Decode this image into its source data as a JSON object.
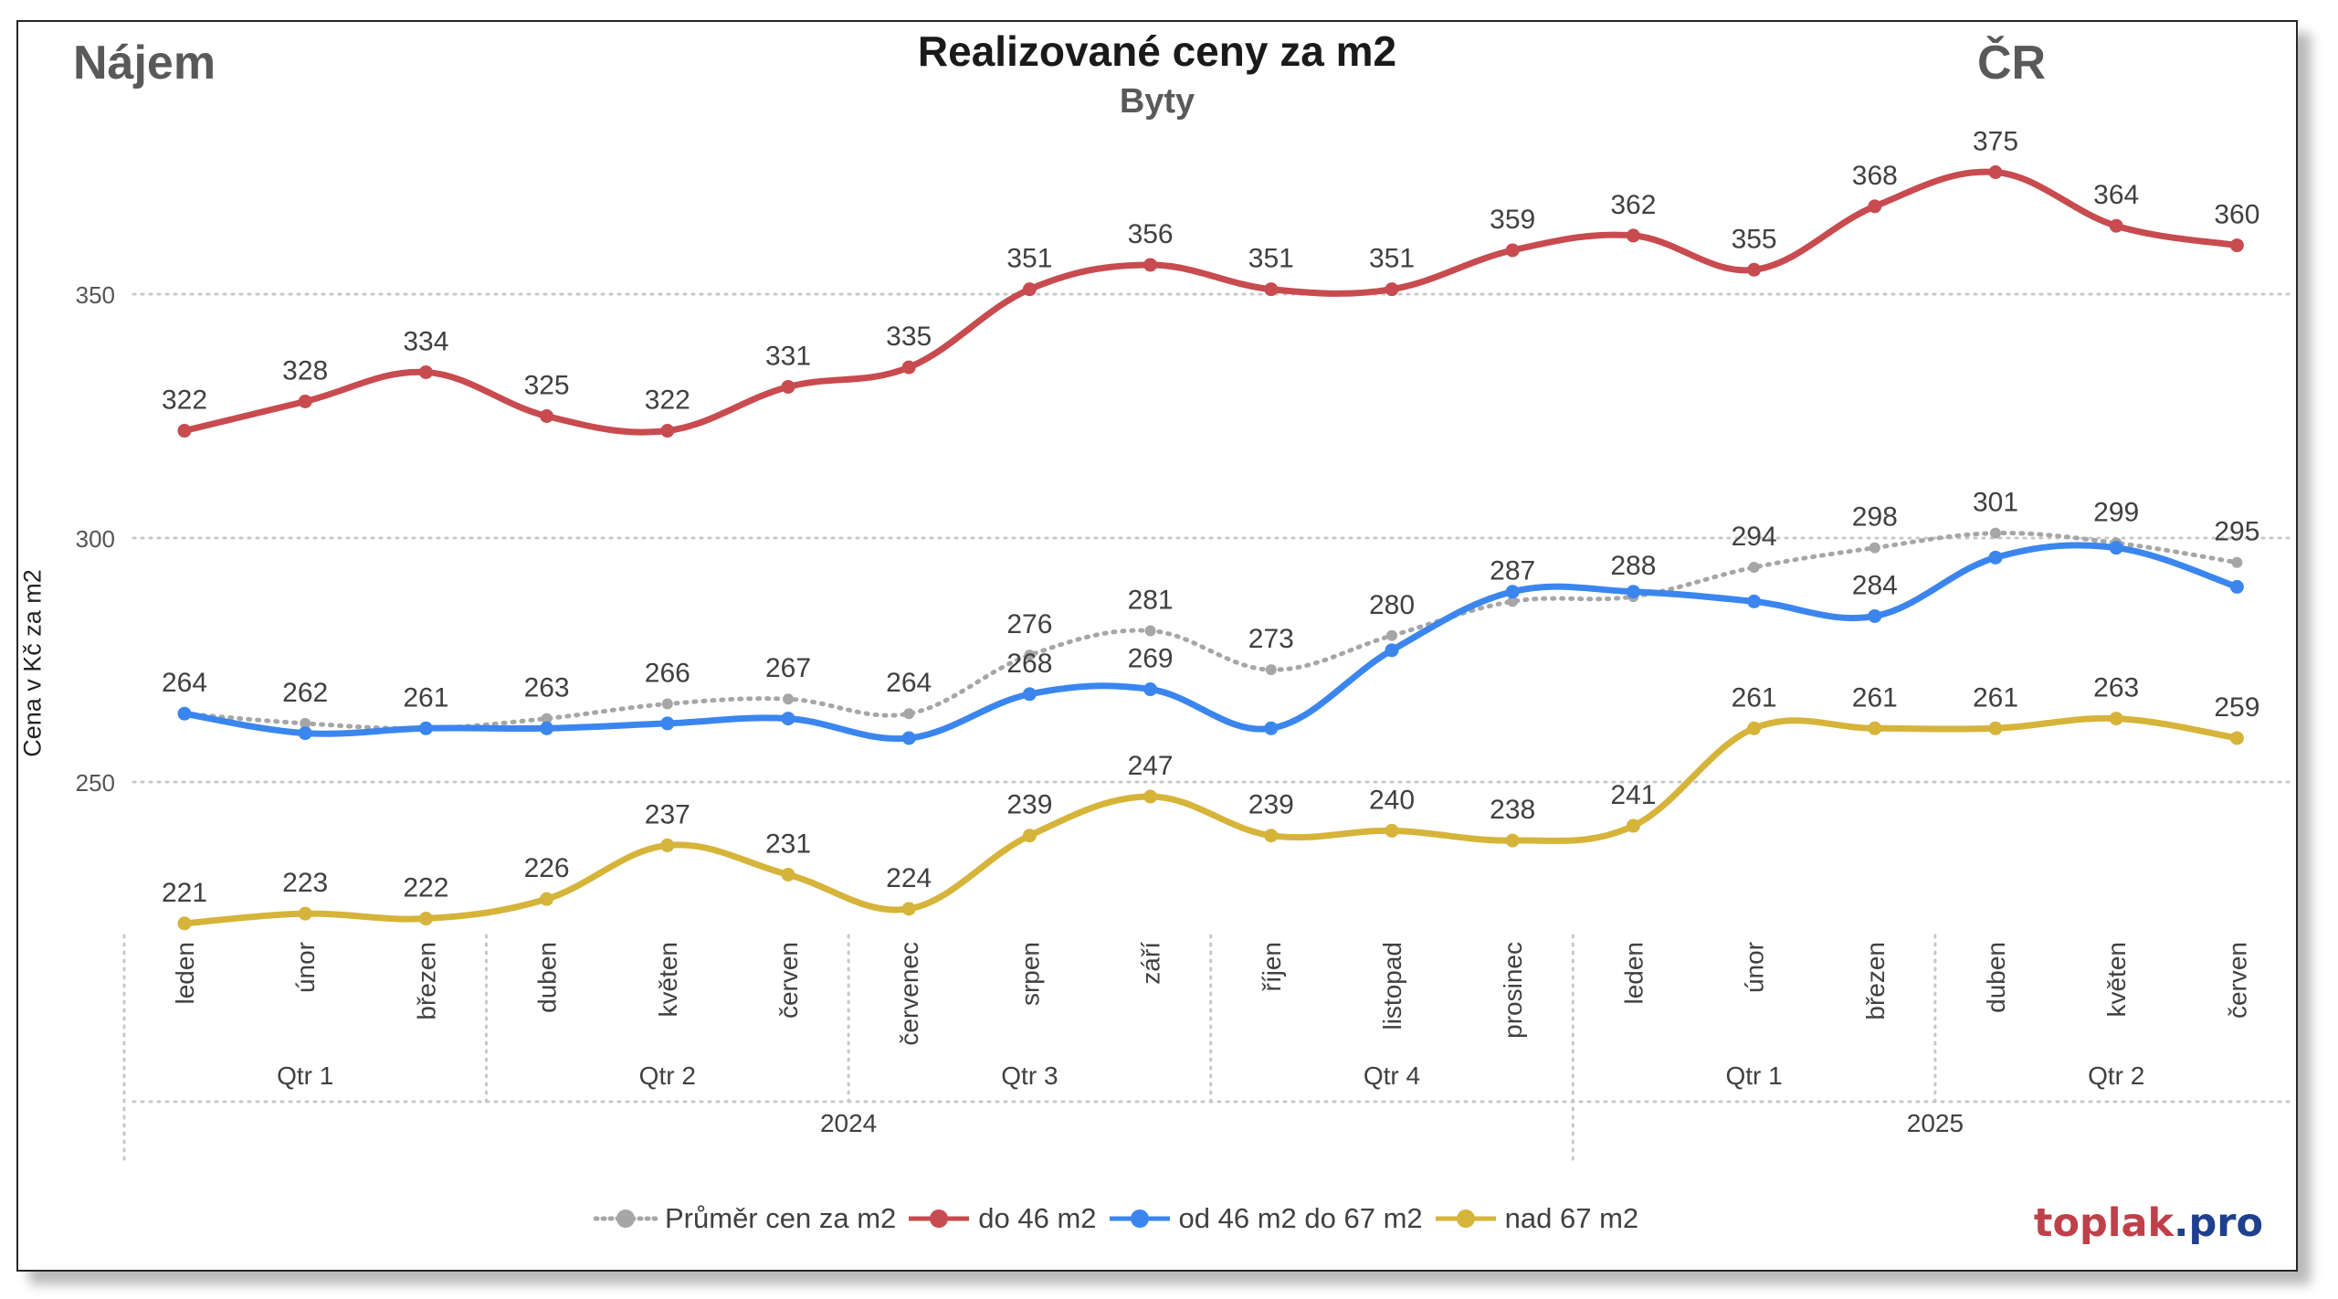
{
  "header": {
    "left_label": "Nájem",
    "title": "Realizované ceny za m2",
    "subtitle": "Byty",
    "right_label": "ČR"
  },
  "branding": {
    "part1": "toplak",
    "part2": ".pro"
  },
  "chart_data": {
    "type": "line",
    "ylabel": "Cena v Kč za m2",
    "ylim": [
      210,
      388
    ],
    "yticks": [
      250,
      300,
      350
    ],
    "grid": true,
    "legend_position": "bottom",
    "categories": [
      "leden",
      "únor",
      "březen",
      "duben",
      "květen",
      "červen",
      "červenec",
      "srpen",
      "září",
      "říjen",
      "listopad",
      "prosinec",
      "leden",
      "únor",
      "březen",
      "duben",
      "květen",
      "červen"
    ],
    "quarters": [
      {
        "label": "Qtr 1",
        "start": 0,
        "end": 2
      },
      {
        "label": "Qtr 2",
        "start": 3,
        "end": 5
      },
      {
        "label": "Qtr 3",
        "start": 6,
        "end": 8
      },
      {
        "label": "Qtr 4",
        "start": 9,
        "end": 11
      },
      {
        "label": "Qtr 1",
        "start": 12,
        "end": 14
      },
      {
        "label": "Qtr 2",
        "start": 15,
        "end": 17
      }
    ],
    "years": [
      {
        "label": "2024",
        "start": 0,
        "end": 11
      },
      {
        "label": "2025",
        "start": 12,
        "end": 17
      }
    ],
    "series": [
      {
        "name": "Průměr cen za m2",
        "color": "#a6a6a6",
        "style": "dotted",
        "values": [
          264,
          262,
          261,
          263,
          266,
          267,
          264,
          276,
          281,
          273,
          280,
          287,
          288,
          294,
          298,
          301,
          299,
          295
        ],
        "label_indices": [
          0,
          1,
          2,
          3,
          4,
          5,
          6,
          7,
          8,
          9,
          10,
          11,
          12,
          13,
          14,
          15,
          16,
          17
        ]
      },
      {
        "name": "do 46 m2",
        "color": "#c84b4f",
        "style": "solid",
        "values": [
          322,
          328,
          334,
          325,
          322,
          331,
          335,
          351,
          356,
          351,
          351,
          359,
          362,
          355,
          368,
          375,
          364,
          360
        ],
        "label_indices": [
          0,
          1,
          2,
          3,
          4,
          5,
          6,
          7,
          8,
          9,
          10,
          11,
          12,
          13,
          14,
          15,
          16,
          17
        ]
      },
      {
        "name": "od 46 m2 do 67 m2",
        "color": "#3b86ee",
        "style": "solid",
        "values": [
          264,
          260,
          261,
          261,
          262,
          263,
          259,
          268,
          269,
          261,
          277,
          289,
          289,
          287,
          284,
          296,
          298,
          290
        ],
        "label_indices": [
          7,
          8,
          14
        ]
      },
      {
        "name": "nad 67 m2",
        "color": "#d6b43a",
        "style": "solid",
        "values": [
          221,
          223,
          222,
          226,
          237,
          231,
          224,
          239,
          247,
          239,
          240,
          238,
          241,
          261,
          261,
          261,
          263,
          259
        ],
        "label_indices": [
          0,
          1,
          2,
          3,
          4,
          5,
          6,
          7,
          8,
          9,
          10,
          11,
          12,
          13,
          14,
          15,
          16,
          17
        ]
      }
    ]
  }
}
